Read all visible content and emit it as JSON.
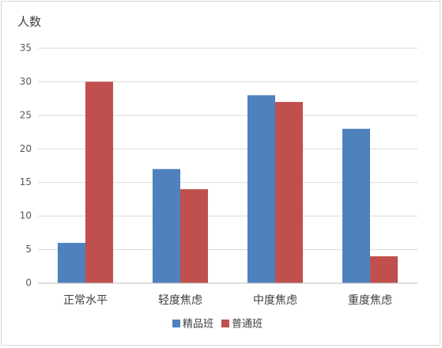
{
  "chart_data": {
    "type": "bar",
    "y_label": "人数",
    "categories": [
      "正常水平",
      "轻度焦虑",
      "中度焦虑",
      "重度焦虑"
    ],
    "series": [
      {
        "name": "精品班",
        "color": "#4f81bd",
        "values": [
          6,
          17,
          28,
          23
        ]
      },
      {
        "name": "普通班",
        "color": "#c0504d",
        "values": [
          30,
          14,
          27,
          4
        ]
      }
    ],
    "ylim": [
      0,
      35
    ],
    "yticks": [
      0,
      5,
      10,
      15,
      20,
      25,
      30,
      35
    ],
    "grid": true,
    "legend": "bottom"
  }
}
